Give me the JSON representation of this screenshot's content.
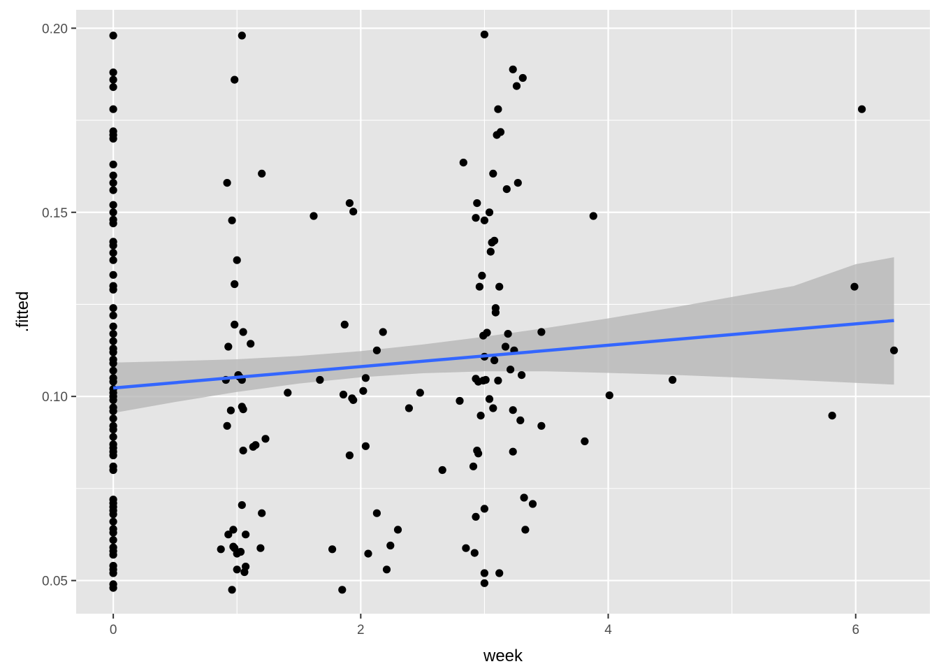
{
  "chart_data": {
    "type": "scatter",
    "xlabel": "week",
    "ylabel": ".fitted",
    "xlim": [
      -0.3,
      6.6
    ],
    "ylim": [
      0.041,
      0.205
    ],
    "x_ticks": [
      {
        "value": 0,
        "label": "0"
      },
      {
        "value": 2,
        "label": "2"
      },
      {
        "value": 4,
        "label": "4"
      },
      {
        "value": 6,
        "label": "6"
      }
    ],
    "y_ticks": [
      {
        "value": 0.05,
        "label": "0.05"
      },
      {
        "value": 0.1,
        "label": "0.10"
      },
      {
        "value": 0.15,
        "label": "0.15"
      },
      {
        "value": 0.2,
        "label": "0.20"
      }
    ],
    "x_minor": [
      1,
      3,
      5
    ],
    "y_minor": [
      0.075,
      0.125,
      0.175
    ],
    "grid": true,
    "legend": "none",
    "colors": {
      "panel": "#e5e5e5",
      "grid": "#ffffff",
      "point": "#000000",
      "fit_line": "#3366ff",
      "ribbon": "#b3b3b3"
    },
    "series": [
      {
        "type": "scatter",
        "points": [
          [
            0,
            0.198
          ],
          [
            0,
            0.188
          ],
          [
            0,
            0.186
          ],
          [
            0,
            0.184
          ],
          [
            0,
            0.178
          ],
          [
            0,
            0.172
          ],
          [
            0,
            0.171
          ],
          [
            0,
            0.17
          ],
          [
            0,
            0.163
          ],
          [
            0,
            0.16
          ],
          [
            0,
            0.158
          ],
          [
            0,
            0.156
          ],
          [
            0,
            0.152
          ],
          [
            0,
            0.15
          ],
          [
            0,
            0.148
          ],
          [
            0,
            0.147
          ],
          [
            0,
            0.142
          ],
          [
            0,
            0.141
          ],
          [
            0,
            0.139
          ],
          [
            0,
            0.137
          ],
          [
            0,
            0.133
          ],
          [
            0,
            0.13
          ],
          [
            0,
            0.129
          ],
          [
            0,
            0.124
          ],
          [
            0,
            0.122
          ],
          [
            0,
            0.119
          ],
          [
            0,
            0.117
          ],
          [
            0,
            0.115
          ],
          [
            0,
            0.113
          ],
          [
            0,
            0.112
          ],
          [
            0,
            0.11
          ],
          [
            0,
            0.109
          ],
          [
            0,
            0.107
          ],
          [
            0,
            0.105
          ],
          [
            0,
            0.104
          ],
          [
            0,
            0.102
          ],
          [
            0,
            0.101
          ],
          [
            0,
            0.1
          ],
          [
            0,
            0.099
          ],
          [
            0,
            0.097
          ],
          [
            0,
            0.096
          ],
          [
            0,
            0.094
          ],
          [
            0,
            0.092
          ],
          [
            0,
            0.091
          ],
          [
            0,
            0.089
          ],
          [
            0,
            0.087
          ],
          [
            0,
            0.086
          ],
          [
            0,
            0.085
          ],
          [
            0,
            0.084
          ],
          [
            0,
            0.081
          ],
          [
            0,
            0.08
          ],
          [
            0,
            0.072
          ],
          [
            0,
            0.071
          ],
          [
            0,
            0.07
          ],
          [
            0,
            0.069
          ],
          [
            0,
            0.068
          ],
          [
            0,
            0.066
          ],
          [
            0,
            0.064
          ],
          [
            0,
            0.063
          ],
          [
            0,
            0.061
          ],
          [
            0,
            0.059
          ],
          [
            0,
            0.058
          ],
          [
            0,
            0.057
          ],
          [
            0,
            0.054
          ],
          [
            0,
            0.053
          ],
          [
            0,
            0.052
          ],
          [
            0,
            0.049
          ],
          [
            0,
            0.048
          ],
          [
            0.87,
            0.0585
          ],
          [
            0.91,
            0.1045
          ],
          [
            0.92,
            0.158
          ],
          [
            0.92,
            0.092
          ],
          [
            0.93,
            0.1135
          ],
          [
            0.93,
            0.0625
          ],
          [
            0.95,
            0.0962
          ],
          [
            0.96,
            0.0475
          ],
          [
            0.96,
            0.1478
          ],
          [
            0.97,
            0.0638
          ],
          [
            0.97,
            0.0592
          ],
          [
            0.98,
            0.1305
          ],
          [
            0.98,
            0.1195
          ],
          [
            0.98,
            0.0588
          ],
          [
            0.98,
            0.186
          ],
          [
            1.0,
            0.0573
          ],
          [
            1.0,
            0.137
          ],
          [
            1.0,
            0.053
          ],
          [
            1.01,
            0.1058
          ],
          [
            1.02,
            0.1053
          ],
          [
            1.03,
            0.0578
          ],
          [
            1.04,
            0.1045
          ],
          [
            1.04,
            0.0705
          ],
          [
            1.04,
            0.198
          ],
          [
            1.04,
            0.0972
          ],
          [
            1.05,
            0.0965
          ],
          [
            1.05,
            0.0853
          ],
          [
            1.05,
            0.1175
          ],
          [
            1.06,
            0.0523
          ],
          [
            1.07,
            0.0538
          ],
          [
            1.07,
            0.0625
          ],
          [
            1.11,
            0.1143
          ],
          [
            1.13,
            0.0863
          ],
          [
            1.15,
            0.0868
          ],
          [
            1.19,
            0.0588
          ],
          [
            1.2,
            0.1605
          ],
          [
            1.2,
            0.0683
          ],
          [
            1.23,
            0.0885
          ],
          [
            1.41,
            0.101
          ],
          [
            1.62,
            0.149
          ],
          [
            1.67,
            0.1045
          ],
          [
            1.77,
            0.0585
          ],
          [
            1.85,
            0.0475
          ],
          [
            1.86,
            0.1005
          ],
          [
            1.87,
            0.1195
          ],
          [
            1.91,
            0.1525
          ],
          [
            1.91,
            0.084
          ],
          [
            1.93,
            0.0995
          ],
          [
            1.94,
            0.099
          ],
          [
            1.94,
            0.1502
          ],
          [
            2.02,
            0.1015
          ],
          [
            2.04,
            0.105
          ],
          [
            2.04,
            0.0865
          ],
          [
            2.06,
            0.0573
          ],
          [
            2.13,
            0.1125
          ],
          [
            2.13,
            0.0683
          ],
          [
            2.18,
            0.1175
          ],
          [
            2.21,
            0.053
          ],
          [
            2.24,
            0.0595
          ],
          [
            2.3,
            0.0638
          ],
          [
            2.39,
            0.0968
          ],
          [
            2.48,
            0.101
          ],
          [
            2.66,
            0.08
          ],
          [
            2.8,
            0.0988
          ],
          [
            2.83,
            0.1635
          ],
          [
            2.85,
            0.0588
          ],
          [
            2.91,
            0.081
          ],
          [
            2.92,
            0.0575
          ],
          [
            2.93,
            0.1048
          ],
          [
            2.93,
            0.0673
          ],
          [
            2.93,
            0.1485
          ],
          [
            2.94,
            0.1525
          ],
          [
            2.94,
            0.0853
          ],
          [
            2.95,
            0.0845
          ],
          [
            2.95,
            0.104
          ],
          [
            2.96,
            0.1298
          ],
          [
            2.97,
            0.0948
          ],
          [
            2.98,
            0.1328
          ],
          [
            2.99,
            0.1043
          ],
          [
            2.99,
            0.1165
          ],
          [
            3.0,
            0.1108
          ],
          [
            3.0,
            0.0493
          ],
          [
            3.0,
            0.052
          ],
          [
            3.0,
            0.0695
          ],
          [
            3.0,
            0.1478
          ],
          [
            3.0,
            0.1983
          ],
          [
            3.01,
            0.1045
          ],
          [
            3.02,
            0.1173
          ],
          [
            3.04,
            0.0993
          ],
          [
            3.04,
            0.15
          ],
          [
            3.05,
            0.1393
          ],
          [
            3.06,
            0.1418
          ],
          [
            3.07,
            0.1605
          ],
          [
            3.07,
            0.0968
          ],
          [
            3.08,
            0.1423
          ],
          [
            3.08,
            0.1098
          ],
          [
            3.09,
            0.124
          ],
          [
            3.09,
            0.1228
          ],
          [
            3.1,
            0.171
          ],
          [
            3.11,
            0.178
          ],
          [
            3.11,
            0.1043
          ],
          [
            3.12,
            0.052
          ],
          [
            3.12,
            0.1298
          ],
          [
            3.13,
            0.1718
          ],
          [
            3.17,
            0.1135
          ],
          [
            3.18,
            0.1563
          ],
          [
            3.19,
            0.117
          ],
          [
            3.21,
            0.1073
          ],
          [
            3.23,
            0.085
          ],
          [
            3.23,
            0.0963
          ],
          [
            3.23,
            0.1888
          ],
          [
            3.24,
            0.1125
          ],
          [
            3.26,
            0.1843
          ],
          [
            3.27,
            0.158
          ],
          [
            3.29,
            0.0935
          ],
          [
            3.3,
            0.1058
          ],
          [
            3.31,
            0.1865
          ],
          [
            3.32,
            0.0725
          ],
          [
            3.33,
            0.0638
          ],
          [
            3.39,
            0.0708
          ],
          [
            3.46,
            0.1175
          ],
          [
            3.46,
            0.092
          ],
          [
            3.81,
            0.0878
          ],
          [
            3.88,
            0.149
          ],
          [
            4.01,
            0.1003
          ],
          [
            4.52,
            0.1045
          ],
          [
            5.81,
            0.0948
          ],
          [
            5.99,
            0.1298
          ],
          [
            6.05,
            0.178
          ],
          [
            6.31,
            0.1125
          ]
        ]
      },
      {
        "type": "line",
        "name": "",
        "x": [
          0,
          6.31
        ],
        "y": [
          0.1023,
          0.1206
        ]
      },
      {
        "type": "ribbon",
        "x": [
          0,
          0.5,
          1,
          1.5,
          2,
          2.5,
          3,
          3.5,
          4,
          4.5,
          5,
          5.5,
          6,
          6.31
        ],
        "ymin": [
          0.0955,
          0.0985,
          0.1012,
          0.1035,
          0.1052,
          0.1063,
          0.1068,
          0.1068,
          0.1064,
          0.1059,
          0.1052,
          0.1045,
          0.1037,
          0.1032
        ],
        "ymax": [
          0.1092,
          0.1096,
          0.1101,
          0.111,
          0.1123,
          0.1141,
          0.1162,
          0.1186,
          0.1212,
          0.124,
          0.127,
          0.13,
          0.1359,
          0.1378
        ]
      }
    ]
  }
}
